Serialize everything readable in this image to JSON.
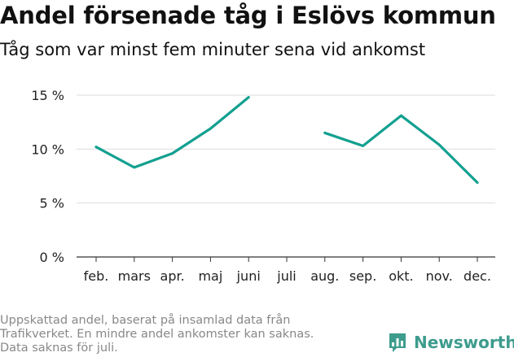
{
  "header": {
    "title": "Andel försenade tåg i Eslövs kommun",
    "subtitle": "Tåg som var minst fem minuter sena vid ankomst"
  },
  "footer": {
    "note_lines": [
      "Uppskattad andel, baserat på insamlad data från",
      "Trafikverket. En mindre andel ankomster kan saknas.",
      "Data saknas för juli."
    ]
  },
  "brand": {
    "name": "Newsworthy",
    "color": "#3d9c8d",
    "icon": "bar-chart-icon"
  },
  "chart_data": {
    "type": "line",
    "categories": [
      "feb.",
      "mars",
      "apr.",
      "maj",
      "juni",
      "juli",
      "aug.",
      "sep.",
      "okt.",
      "nov.",
      "dec."
    ],
    "series": [
      {
        "values": [
          10.2,
          8.3,
          9.6,
          11.9,
          14.8,
          null,
          11.5,
          10.3,
          13.1,
          10.4,
          6.9
        ],
        "color": "#12a090"
      }
    ],
    "y_ticks": [
      0,
      5,
      10,
      15
    ],
    "y_tick_labels": [
      "0 %",
      "5 %",
      "10 %",
      "15 %"
    ],
    "ylim": [
      0,
      15
    ],
    "grid": true,
    "legend": "none"
  }
}
